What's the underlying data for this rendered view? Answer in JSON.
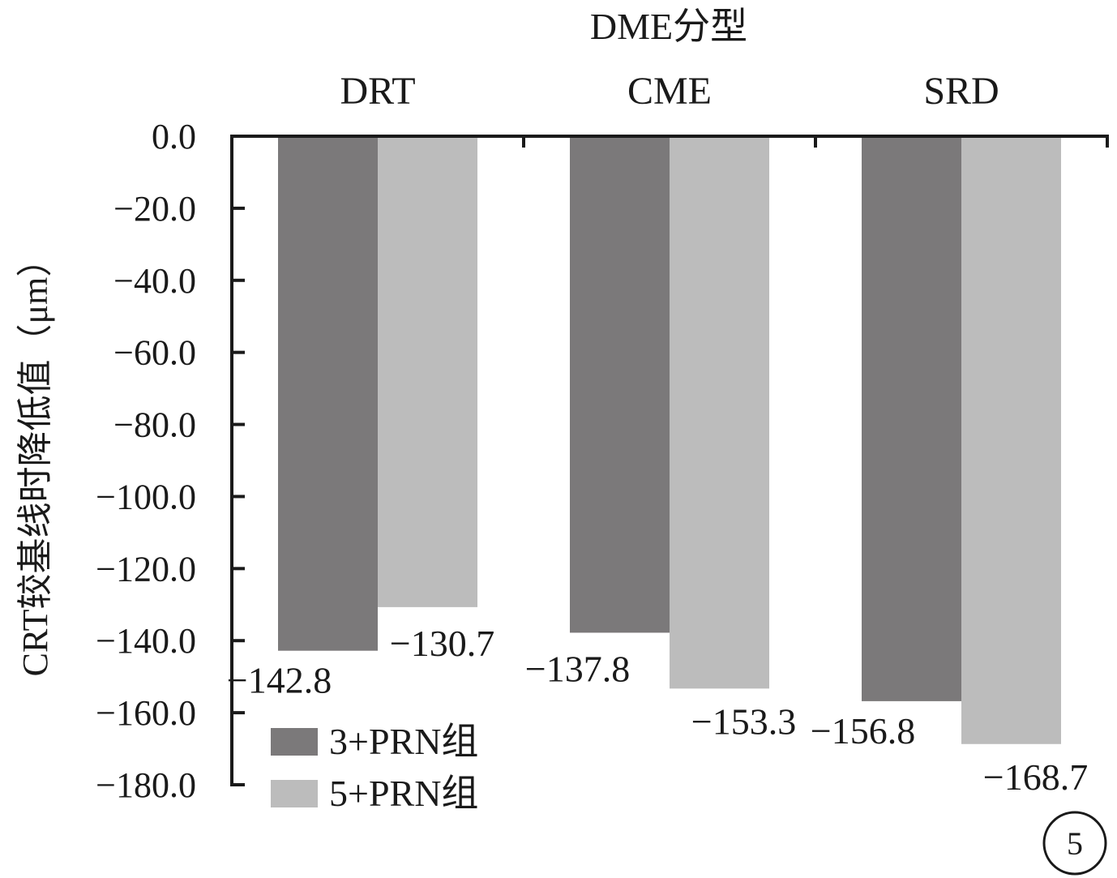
{
  "chart_data": {
    "type": "bar",
    "title": "DME分型",
    "ylabel": "CRT较基线时降低值（μm）",
    "xlabel": "",
    "categories": [
      "DRT",
      "CME",
      "SRD"
    ],
    "series": [
      {
        "name": "3+PRN组",
        "values": [
          -142.8,
          -137.8,
          -156.8
        ],
        "color": "#7b797a"
      },
      {
        "name": "5+PRN组",
        "values": [
          -130.7,
          -153.3,
          -168.7
        ],
        "color": "#bcbcbc"
      }
    ],
    "ylim": [
      -180,
      0
    ],
    "yticks": [
      "0.0",
      "−20.0",
      "−40.0",
      "−60.0",
      "−80.0",
      "−100.0",
      "−120.0",
      "−140.0",
      "−160.0",
      "−180.0"
    ],
    "ytick_values": [
      0,
      -20,
      -40,
      -60,
      -80,
      -100,
      -120,
      -140,
      -160,
      -180
    ],
    "data_labels": [
      [
        "−142.8",
        "−137.8",
        "−156.8"
      ],
      [
        "−130.7",
        "−153.3",
        "−168.7"
      ]
    ],
    "grid": false,
    "legend_position": "bottom-left",
    "x_axis_position": "top",
    "panel_number": "5"
  }
}
